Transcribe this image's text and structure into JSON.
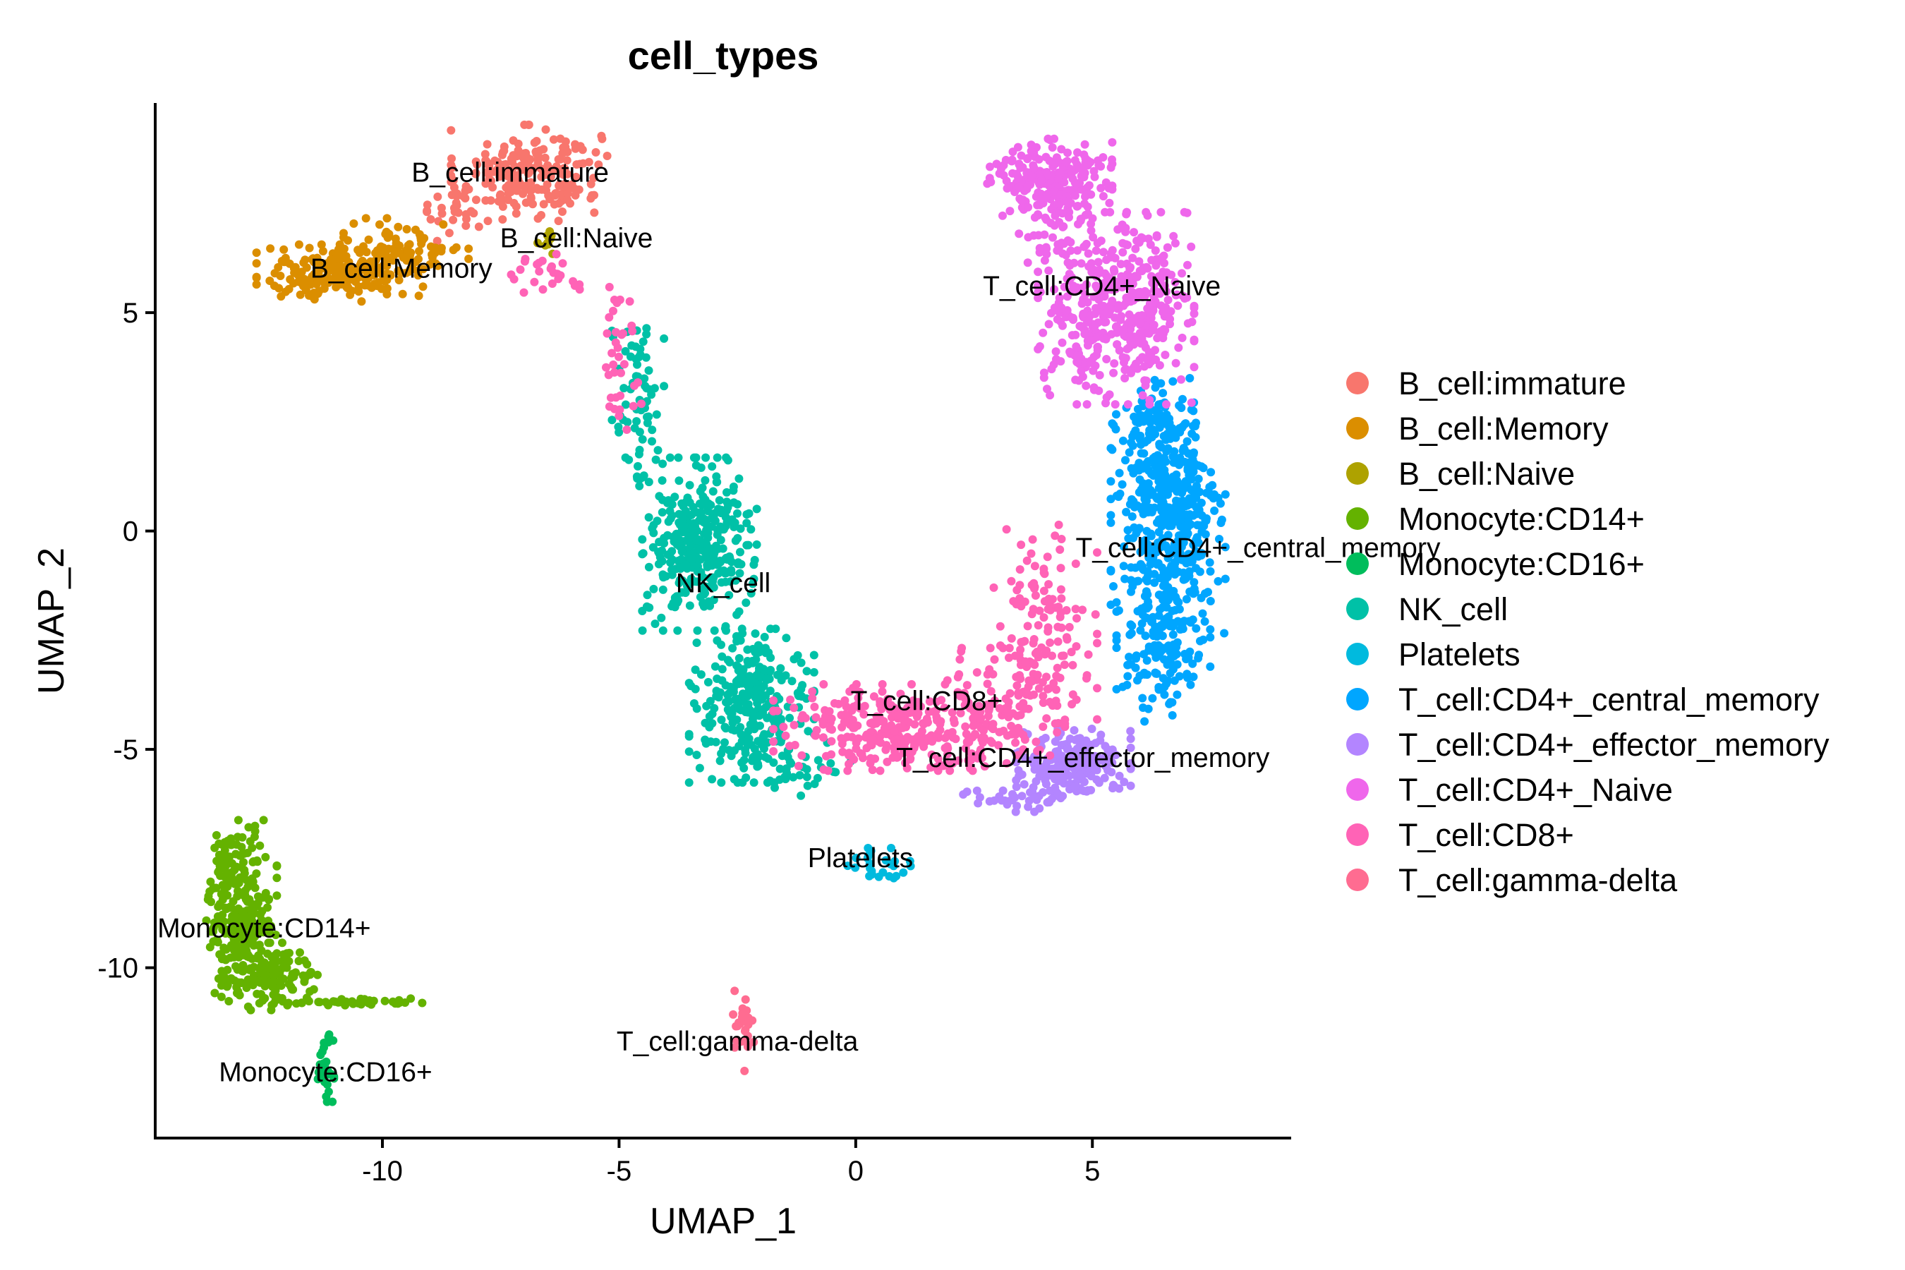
{
  "chart_data": {
    "type": "scatter",
    "title": "cell_types",
    "xlabel": "UMAP_1",
    "ylabel": "UMAP_2",
    "xlim": [
      -14.8,
      9.2
    ],
    "ylim": [
      -13.9,
      9.8
    ],
    "xticks": [
      -10,
      -5,
      0,
      5
    ],
    "yticks": [
      5,
      0,
      -5,
      -10
    ],
    "xtick_labels": [
      "-10",
      "-5",
      "0",
      "5"
    ],
    "ytick_labels": [
      "5",
      "0",
      "-5",
      "-10"
    ],
    "grid": false,
    "legend_position": "right",
    "series": [
      {
        "name": "B_cell:immature",
        "color": "#F8766D",
        "label": {
          "text": "B_cell:immature",
          "x": -7.3,
          "y": 8.0
        },
        "clusters": [
          {
            "cx": -6.9,
            "cy": 8.2,
            "sx": 0.75,
            "sy": 0.5,
            "n": 220
          },
          {
            "cx": -8.4,
            "cy": 7.3,
            "sx": 0.3,
            "sy": 0.3,
            "n": 30
          }
        ]
      },
      {
        "name": "B_cell:Memory",
        "color": "#DB8E00",
        "label": {
          "text": "B_cell:Memory",
          "x": -9.6,
          "y": 5.8
        },
        "clusters": [
          {
            "cx": -10.9,
            "cy": 5.9,
            "sx": 0.8,
            "sy": 0.3,
            "n": 200
          },
          {
            "cx": -9.5,
            "cy": 6.5,
            "sx": 0.6,
            "sy": 0.3,
            "n": 80
          }
        ]
      },
      {
        "name": "B_cell:Naive",
        "color": "#AEA200",
        "label": {
          "text": "B_cell:Naive",
          "x": -5.9,
          "y": 6.5
        },
        "clusters": [
          {
            "cx": -6.5,
            "cy": 6.6,
            "sx": 0.1,
            "sy": 0.2,
            "n": 10
          }
        ]
      },
      {
        "name": "Monocyte:CD14+",
        "color": "#64B200",
        "label": {
          "text": "Monocyte:CD14+",
          "x": -12.5,
          "y": -9.3
        },
        "clusters": [
          {
            "cx": -13.0,
            "cy": -8.6,
            "sx": 0.35,
            "sy": 0.9,
            "n": 260
          },
          {
            "cx": -12.3,
            "cy": -10.2,
            "sx": 0.5,
            "sy": 0.35,
            "n": 120
          },
          {
            "cx": -10.7,
            "cy": -10.8,
            "sx": 0.7,
            "sy": 0.05,
            "n": 40
          }
        ]
      },
      {
        "name": "Monocyte:CD16+",
        "color": "#00BD5C",
        "label": {
          "text": "Monocyte:CD16+",
          "x": -11.2,
          "y": -12.6
        },
        "clusters": [
          {
            "cx": -11.2,
            "cy": -12.3,
            "sx": 0.08,
            "sy": 0.35,
            "n": 30
          }
        ]
      },
      {
        "name": "NK_cell",
        "color": "#00C1A7",
        "label": {
          "text": "NK_cell",
          "x": -2.8,
          "y": -1.4
        },
        "clusters": [
          {
            "cx": -3.3,
            "cy": -0.3,
            "sx": 0.55,
            "sy": 0.9,
            "n": 330
          },
          {
            "cx": -2.2,
            "cy": -4.0,
            "sx": 0.6,
            "sy": 0.8,
            "n": 280
          },
          {
            "cx": -4.6,
            "cy": 3.0,
            "sx": 0.25,
            "sy": 1.0,
            "n": 70
          },
          {
            "cx": -1.2,
            "cy": -5.4,
            "sx": 0.5,
            "sy": 0.3,
            "n": 30
          }
        ]
      },
      {
        "name": "Platelets",
        "color": "#00BADE",
        "label": {
          "text": "Platelets",
          "x": 0.1,
          "y": -7.7
        },
        "clusters": [
          {
            "cx": 0.5,
            "cy": -7.7,
            "sx": 0.4,
            "sy": 0.2,
            "n": 25
          }
        ]
      },
      {
        "name": "T_cell:CD4+_central_memory",
        "color": "#00A6FF",
        "label": {
          "text": "T_cell:CD4+_central_memory",
          "x": 8.5,
          "y": -0.6
        },
        "clusters": [
          {
            "cx": 6.6,
            "cy": 0.3,
            "sx": 0.55,
            "sy": 1.2,
            "n": 420
          },
          {
            "cx": 6.5,
            "cy": -2.6,
            "sx": 0.45,
            "sy": 0.8,
            "n": 160
          },
          {
            "cx": 6.3,
            "cy": 2.4,
            "sx": 0.4,
            "sy": 0.5,
            "n": 80
          }
        ]
      },
      {
        "name": "T_cell:CD4+_effector_memory",
        "color": "#B385FF",
        "label": {
          "text": "T_cell:CD4+_effector_memory",
          "x": 4.8,
          "y": -5.4
        },
        "clusters": [
          {
            "cx": 4.6,
            "cy": -5.3,
            "sx": 0.55,
            "sy": 0.35,
            "n": 210
          },
          {
            "cx": 3.5,
            "cy": -6.1,
            "sx": 0.6,
            "sy": 0.15,
            "n": 40
          }
        ]
      },
      {
        "name": "T_cell:CD4+_Naive",
        "color": "#EF67EB",
        "label": {
          "text": "T_cell:CD4+_Naive",
          "x": 5.2,
          "y": 5.4
        },
        "clusters": [
          {
            "cx": 4.1,
            "cy": 8.1,
            "sx": 0.6,
            "sy": 0.4,
            "n": 220
          },
          {
            "cx": 5.5,
            "cy": 5.1,
            "sx": 0.75,
            "sy": 1.0,
            "n": 460
          },
          {
            "cx": 4.2,
            "cy": 6.8,
            "sx": 0.4,
            "sy": 0.4,
            "n": 40
          }
        ]
      },
      {
        "name": "T_cell:CD8+",
        "color": "#FF63B6",
        "label": {
          "text": "T_cell:CD8+",
          "x": 1.5,
          "y": -4.1
        },
        "clusters": [
          {
            "cx": 0.9,
            "cy": -4.5,
            "sx": 1.2,
            "sy": 0.45,
            "n": 320
          },
          {
            "cx": 4.0,
            "cy": -2.5,
            "sx": 0.5,
            "sy": 1.2,
            "n": 150
          },
          {
            "cx": -5.0,
            "cy": 4.3,
            "sx": 0.25,
            "sy": 0.9,
            "n": 35
          },
          {
            "cx": -6.4,
            "cy": 5.9,
            "sx": 0.4,
            "sy": 0.2,
            "n": 25
          },
          {
            "cx": 3.0,
            "cy": -4.0,
            "sx": 0.6,
            "sy": 0.6,
            "n": 80
          }
        ]
      },
      {
        "name": "T_cell:gamma-delta",
        "color": "#FF6C91",
        "label": {
          "text": "T_cell:gamma-delta",
          "x": -2.5,
          "y": -11.9
        },
        "clusters": [
          {
            "cx": -2.4,
            "cy": -11.3,
            "sx": 0.15,
            "sy": 0.5,
            "n": 30
          }
        ]
      }
    ]
  }
}
